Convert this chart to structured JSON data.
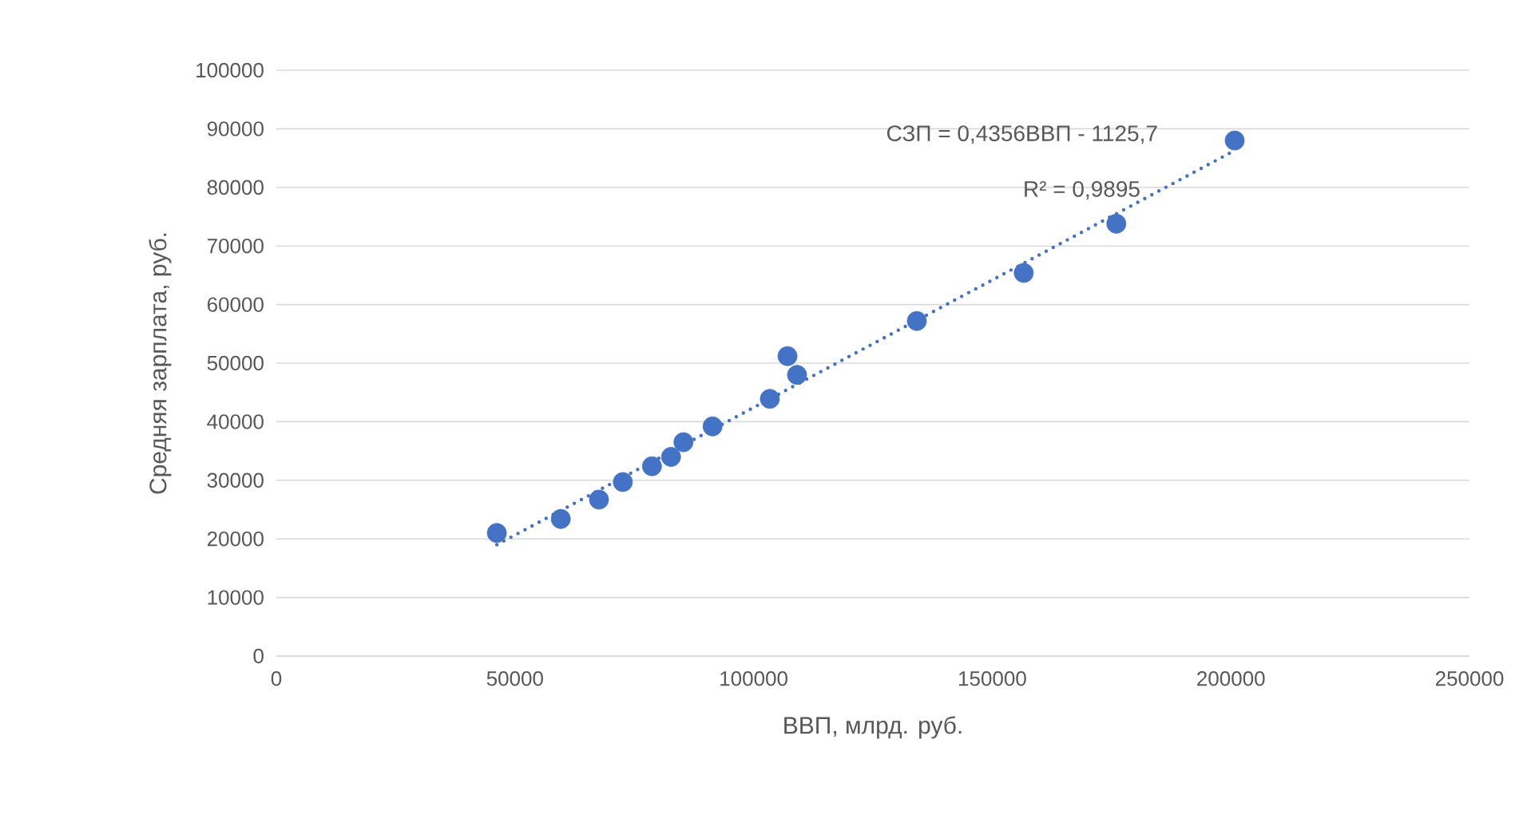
{
  "chart_data": {
    "type": "scatter",
    "xlabel": "ВВП, млрд. руб.",
    "ylabel": "Средняя зарплата, руб.",
    "annotations": [
      "СЗП = 0,4356ВВП - 1125,7",
      "R² = 0,9895"
    ],
    "xlim": [
      0,
      250000
    ],
    "xticks": [
      0,
      50000,
      100000,
      150000,
      200000,
      250000
    ],
    "ylim": [
      0,
      100000
    ],
    "yticks": [
      0,
      10000,
      20000,
      30000,
      40000,
      50000,
      60000,
      70000,
      80000,
      90000,
      100000
    ],
    "grid": "y",
    "marker": "circle",
    "series": [
      {
        "color": "#4472c4",
        "x": [
          46200,
          59600,
          67600,
          72600,
          78700,
          82700,
          85300,
          91400,
          103400,
          107100,
          109100,
          134200,
          156600,
          176000,
          200800
        ],
        "values": [
          21000,
          23400,
          26700,
          29700,
          32400,
          34000,
          36500,
          39200,
          43900,
          51200,
          48000,
          57200,
          65400,
          73800,
          88000
        ]
      },
      {
        "type": "line",
        "color": "#4472c4",
        "line_style": "dotted",
        "marker": "none",
        "x": [
          46200,
          200800
        ],
        "values": [
          19000,
          86300
        ]
      }
    ]
  }
}
